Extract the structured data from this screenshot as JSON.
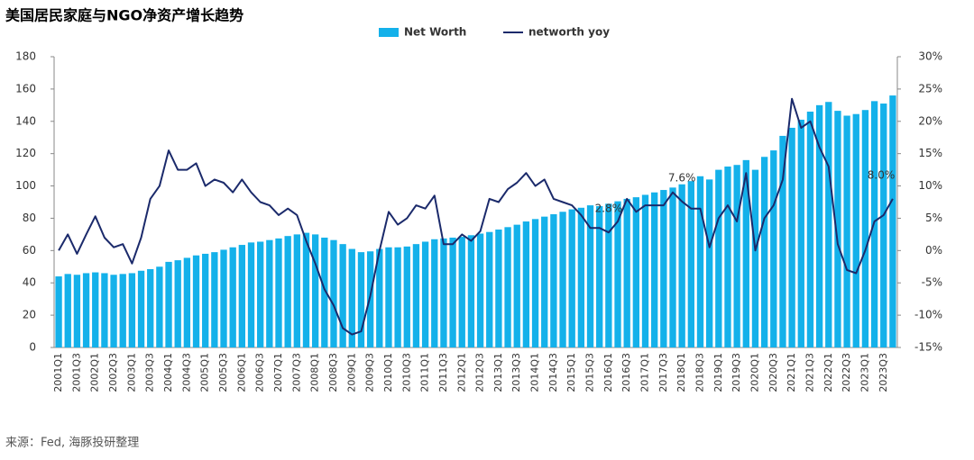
{
  "chart_data": {
    "type": "bar",
    "title": "美国居民家庭与NGO净资产增长趋势",
    "source": "来源：Fed, 海豚投研整理",
    "categories": [
      "2001Q1",
      null,
      "2001Q3",
      null,
      "2002Q1",
      null,
      "2002Q3",
      null,
      "2003Q1",
      null,
      "2003Q3",
      null,
      "2004Q1",
      null,
      "2004Q3",
      null,
      "2005Q1",
      null,
      "2005Q3",
      null,
      "2006Q1",
      null,
      "2006Q3",
      null,
      "2007Q1",
      null,
      "2007Q3",
      null,
      "2008Q1",
      null,
      "2008Q3",
      null,
      "2009Q1",
      null,
      "2009Q3",
      null,
      "2010Q1",
      null,
      "2010Q3",
      null,
      "2011Q1",
      null,
      "2011Q3",
      null,
      "2012Q1",
      null,
      "2012Q3",
      null,
      "2013Q1",
      null,
      "2013Q3",
      null,
      "2014Q1",
      null,
      "2014Q3",
      null,
      "2015Q1",
      null,
      "2015Q3",
      null,
      "2016Q1",
      null,
      "2016Q3",
      null,
      "2017Q1",
      null,
      "2017Q3",
      null,
      "2018Q1",
      null,
      "2018Q3",
      null,
      "2019Q1",
      null,
      "2019Q3",
      null,
      "2020Q1",
      null,
      "2020Q3",
      null,
      "2021Q1",
      null,
      "2021Q3",
      null,
      "2022Q1",
      null,
      "2022Q3",
      null,
      "2023Q1",
      null,
      "2023Q3",
      null
    ],
    "series": [
      {
        "name": "Net Worth",
        "type": "bar",
        "color": "#14b1ea",
        "values": [
          44,
          45.5,
          45,
          46,
          46.5,
          46,
          45,
          45.5,
          46,
          47.5,
          48.5,
          50,
          53,
          54,
          55.5,
          57,
          58,
          59,
          60.5,
          62,
          63.5,
          65,
          65.5,
          66.5,
          67.5,
          69,
          70,
          71,
          70,
          68,
          66.5,
          64,
          61,
          59,
          59.5,
          61,
          62,
          62,
          62.5,
          64,
          65.5,
          67,
          67.5,
          68,
          68.5,
          69.5,
          70.5,
          71.5,
          73,
          74.5,
          76,
          78,
          79.5,
          81,
          82.5,
          84,
          85.5,
          86.5,
          88,
          87.5,
          89,
          90.5,
          92,
          93,
          94.5,
          96,
          97.5,
          99,
          101,
          103,
          106,
          104,
          110,
          112,
          113,
          116,
          110,
          118,
          122,
          131,
          136,
          141,
          146,
          150,
          152,
          146.5,
          143.5,
          144.5,
          147,
          152.5,
          151,
          156
        ]
      },
      {
        "name": "networth yoy",
        "type": "line",
        "axis": "y2",
        "color": "#1b2a6b",
        "values": [
          0,
          2.5,
          -0.5,
          2.5,
          5.3,
          2,
          0.5,
          1,
          -2,
          2,
          8,
          10,
          15.5,
          12.5,
          12.5,
          13.5,
          10,
          11,
          10.5,
          9,
          11,
          9,
          7.5,
          7,
          5.5,
          6.5,
          5.5,
          1.5,
          -2,
          -6,
          -8.5,
          -12,
          -13,
          -12.5,
          -7,
          0,
          6,
          4,
          5,
          7,
          6.5,
          8.5,
          1,
          1,
          2.5,
          1.5,
          3,
          8,
          7.5,
          9.5,
          10.5,
          12,
          10,
          11,
          8,
          7.5,
          7,
          5.5,
          3.5,
          3.5,
          2.8,
          4.5,
          8,
          6,
          7,
          7,
          7,
          9,
          7.6,
          6.5,
          6.5,
          0.5,
          5,
          7,
          4.5,
          12,
          0,
          5,
          7,
          11,
          23.5,
          19,
          20,
          16,
          13,
          1,
          -3,
          -3.5,
          0,
          4.5,
          5.5,
          8.0
        ],
        "value_labels": [
          null,
          null,
          null,
          null,
          null,
          null,
          null,
          null,
          null,
          null,
          null,
          null,
          null,
          null,
          null,
          null,
          null,
          null,
          null,
          null,
          null,
          null,
          null,
          null,
          null,
          null,
          null,
          null,
          null,
          null,
          null,
          null,
          null,
          null,
          null,
          null,
          null,
          null,
          null,
          null,
          null,
          null,
          null,
          null,
          null,
          null,
          null,
          null,
          null,
          null,
          null,
          null,
          null,
          null,
          null,
          null,
          null,
          null,
          null,
          null,
          "2.8%",
          null,
          null,
          null,
          null,
          null,
          null,
          null,
          "7.6%",
          null,
          null,
          null,
          null,
          null,
          null,
          null,
          null,
          null,
          null,
          null,
          null,
          null,
          null,
          null,
          null,
          null,
          null,
          null,
          null,
          null,
          null,
          "8.0%"
        ]
      }
    ],
    "ylim": [
      0,
      180
    ],
    "yticks": [
      0,
      20,
      40,
      60,
      80,
      100,
      120,
      140,
      160,
      180
    ],
    "y2lim": [
      -15,
      30
    ],
    "y2ticks": [
      {
        "value": -15,
        "label": "-15%"
      },
      {
        "value": -10,
        "label": "-10%"
      },
      {
        "value": -5,
        "label": "-5%"
      },
      {
        "value": 0,
        "label": "0%"
      },
      {
        "value": 5,
        "label": "5%"
      },
      {
        "value": 10,
        "label": "10%"
      },
      {
        "value": 15,
        "label": "15%"
      },
      {
        "value": 20,
        "label": "20%"
      },
      {
        "value": 25,
        "label": "25%"
      },
      {
        "value": 30,
        "label": "30%"
      }
    ],
    "legend": "top"
  }
}
